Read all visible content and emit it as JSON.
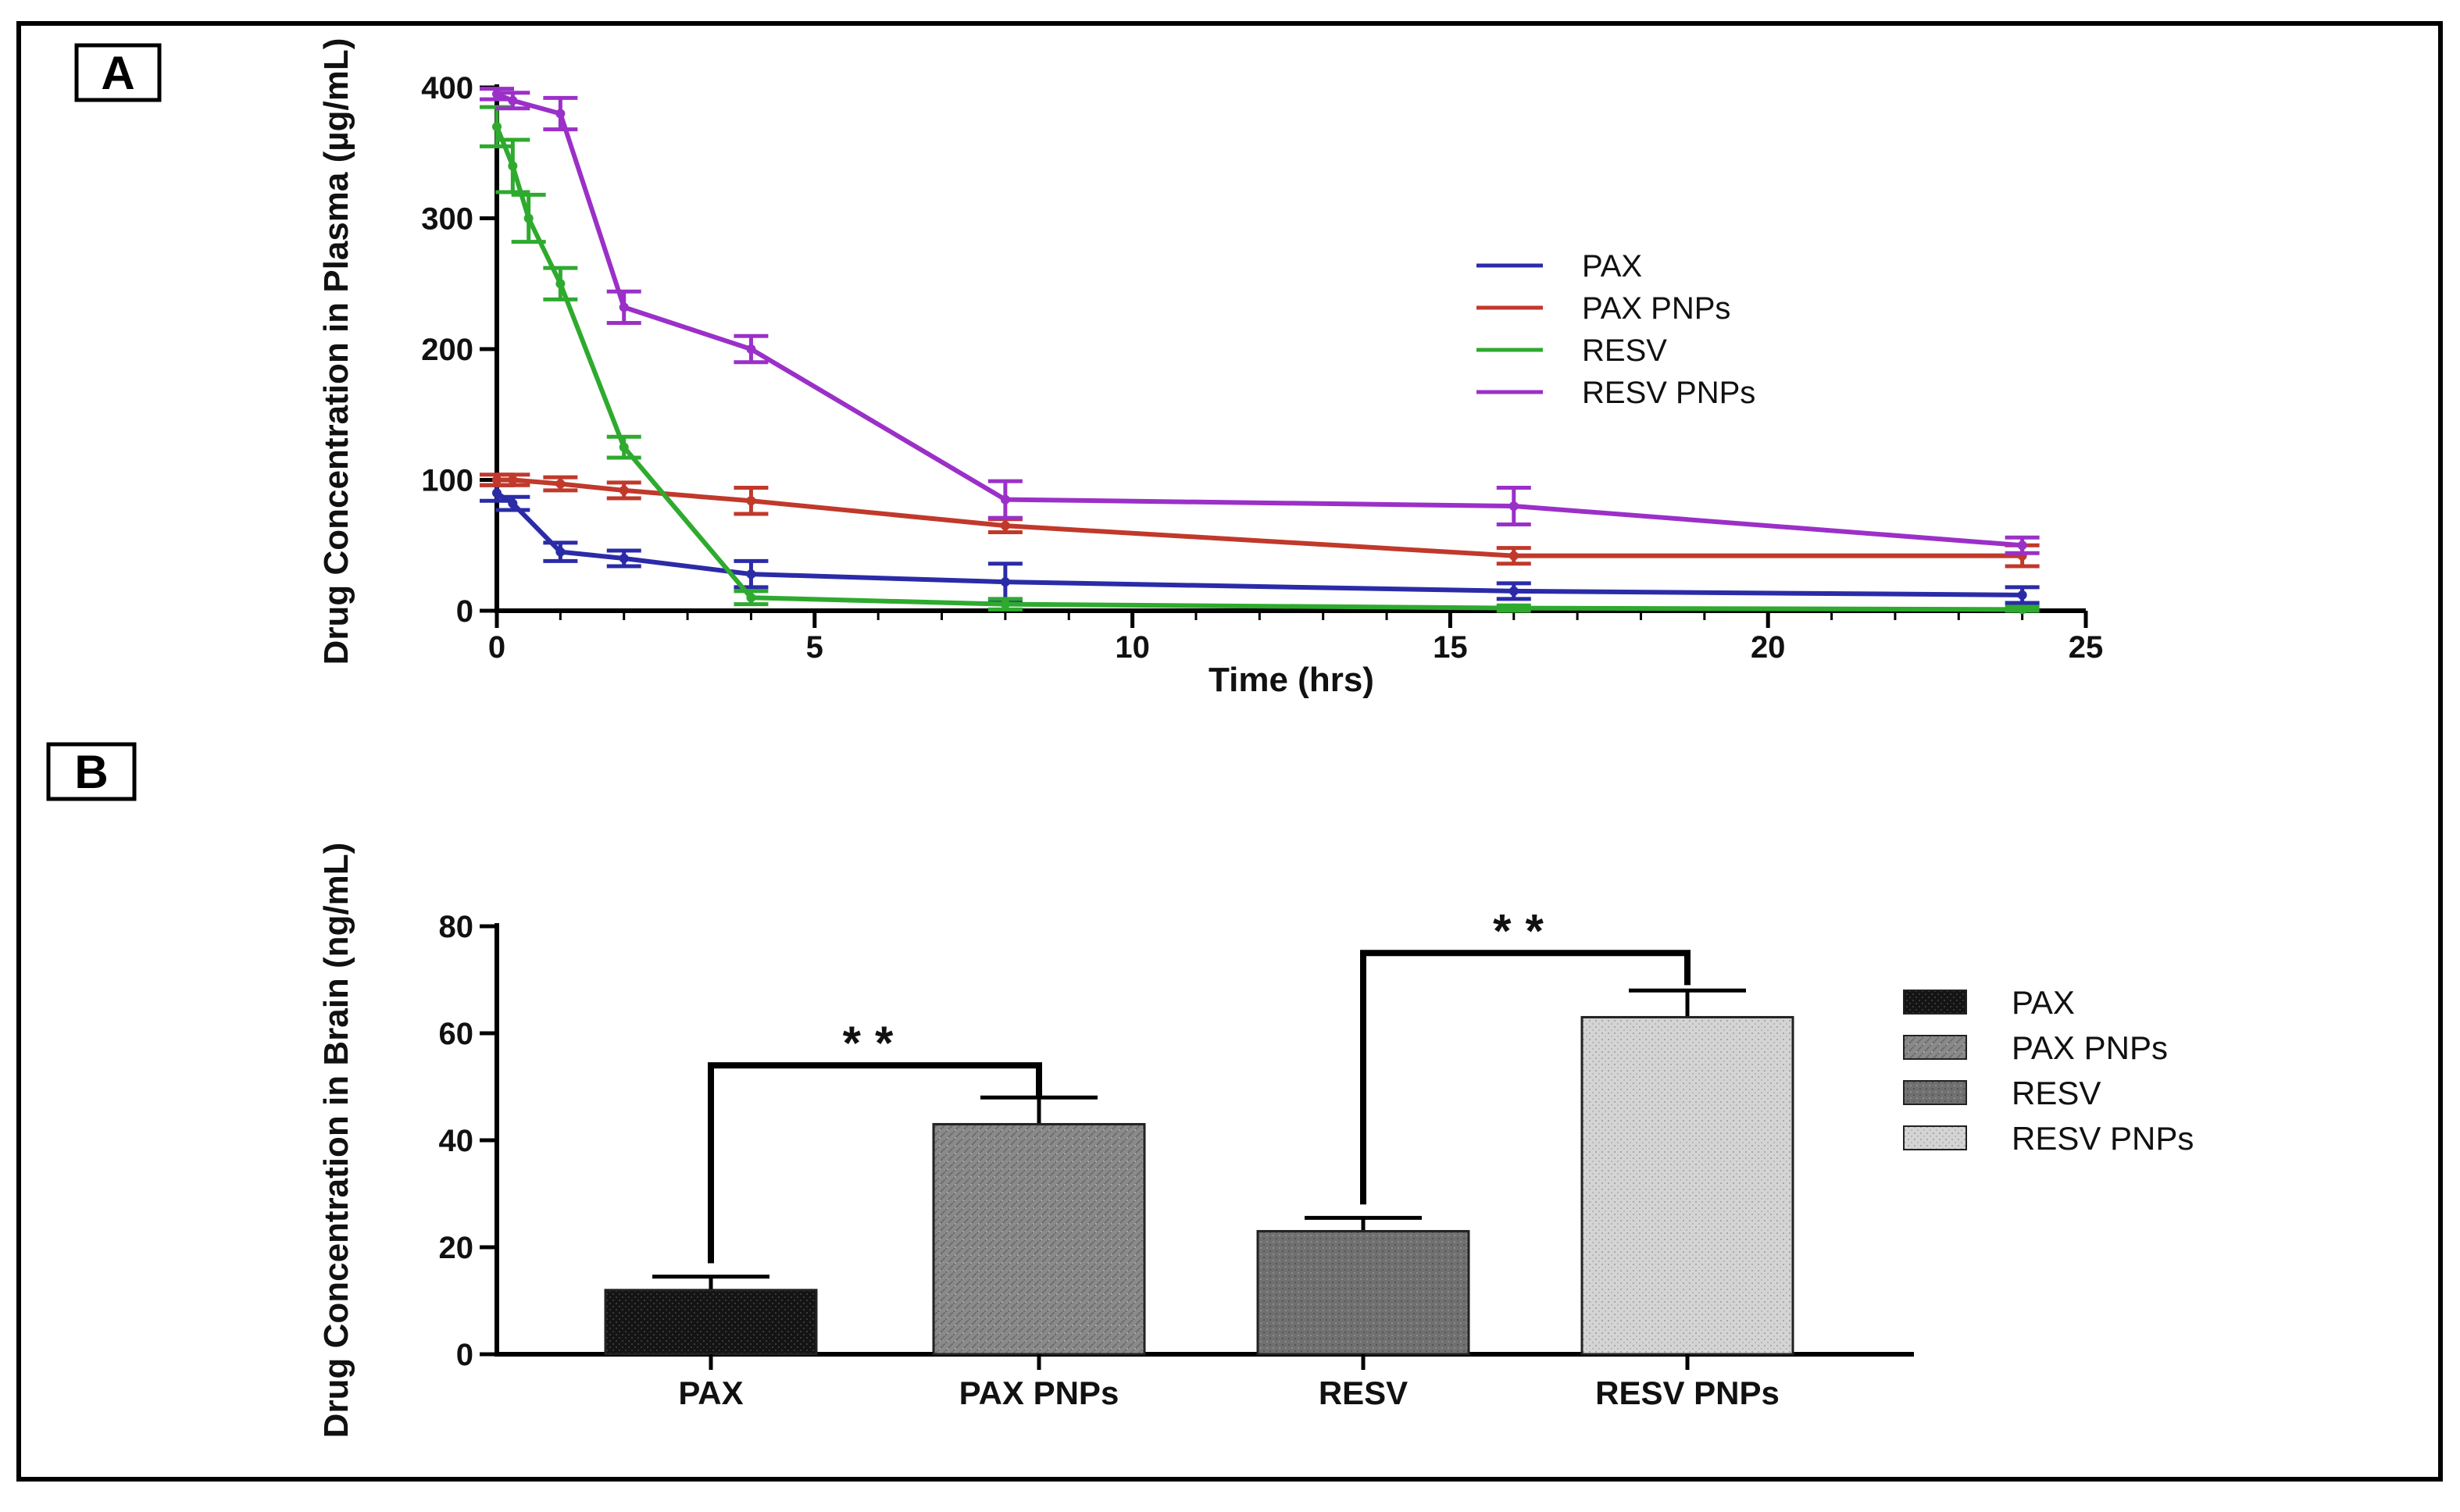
{
  "chart_data": [
    {
      "panel": "A",
      "type": "line",
      "xlabel": "Time (hrs)",
      "ylabel": "Drug Concentration in Plasma (µg/mL)",
      "xlim": [
        0,
        25
      ],
      "ylim": [
        0,
        400
      ],
      "xticks": [
        0,
        5,
        10,
        15,
        20,
        25
      ],
      "yticks": [
        0,
        100,
        200,
        300,
        400
      ],
      "legend_position": "right",
      "series": [
        {
          "name": "PAX",
          "color": "#2b2ba8",
          "x": [
            0,
            0.25,
            1,
            2,
            4,
            8,
            16,
            24
          ],
          "y": [
            90,
            82,
            45,
            40,
            28,
            22,
            15,
            12
          ],
          "err": [
            6,
            5,
            7,
            6,
            10,
            14,
            6,
            6
          ]
        },
        {
          "name": "PAX PNPs",
          "color": "#c0392b",
          "x": [
            0,
            0.25,
            1,
            2,
            4,
            8,
            16,
            24
          ],
          "y": [
            100,
            100,
            97,
            92,
            84,
            65,
            42,
            42
          ],
          "err": [
            4,
            4,
            5,
            6,
            10,
            5,
            6,
            8
          ]
        },
        {
          "name": "RESV",
          "color": "#2eaa2e",
          "x": [
            0,
            0.25,
            0.5,
            1,
            2,
            4,
            8,
            16,
            24
          ],
          "y": [
            370,
            340,
            300,
            250,
            125,
            10,
            5,
            2,
            1
          ],
          "err": [
            15,
            20,
            18,
            12,
            8,
            5,
            4,
            2,
            2
          ]
        },
        {
          "name": "RESV PNPs",
          "color": "#9b30c8",
          "x": [
            0,
            0.25,
            1,
            2,
            4,
            8,
            16,
            24
          ],
          "y": [
            395,
            390,
            380,
            232,
            200,
            85,
            80,
            50
          ],
          "err": [
            4,
            6,
            12,
            12,
            10,
            14,
            14,
            6
          ]
        }
      ]
    },
    {
      "panel": "B",
      "type": "bar",
      "ylabel": "Drug Concentration in Brain (ng/mL)",
      "ylim": [
        0,
        80
      ],
      "yticks": [
        0,
        20,
        40,
        60,
        80
      ],
      "categories": [
        "PAX",
        "PAX PNPs",
        "RESV",
        "RESV PNPs"
      ],
      "values": [
        12,
        43,
        23,
        63
      ],
      "errors": [
        2.5,
        5,
        2.5,
        5
      ],
      "fills": [
        "#141414",
        "#8a8a8a",
        "#707070",
        "#cfcfcf"
      ],
      "legend_position": "right",
      "annotations": [
        {
          "from": "PAX",
          "to": "PAX PNPs",
          "label": "**"
        },
        {
          "from": "RESV",
          "to": "RESV PNPs",
          "label": "**"
        }
      ]
    }
  ],
  "panels": {
    "a_label": "A",
    "b_label": "B"
  }
}
